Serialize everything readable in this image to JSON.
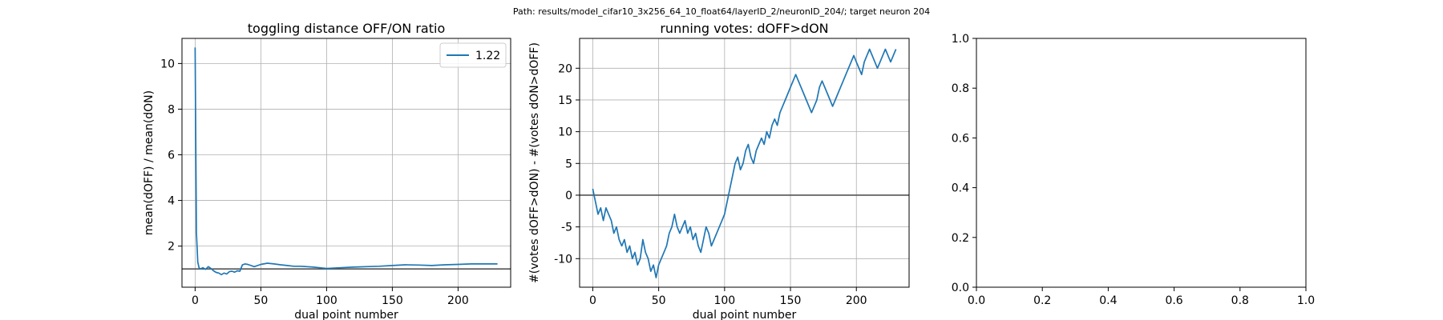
{
  "suptitle": "Path: results/model_cifar10_3x256_64_10_float64/layerID_2/neuronID_204/; target neuron 204",
  "chart_data": [
    {
      "type": "line",
      "title": "toggling distance OFF/ON ratio",
      "xlabel": "dual point number",
      "ylabel": "mean(dOFF) / mean(dON)",
      "xlim": [
        -10,
        240
      ],
      "ylim": [
        0.2,
        11.1
      ],
      "xticks": [
        0,
        50,
        100,
        150,
        200
      ],
      "yticks": [
        2,
        4,
        6,
        8,
        10
      ],
      "grid": true,
      "hline": 1.0,
      "legend": {
        "position": "top-right",
        "entries": [
          "1.22"
        ]
      },
      "color": "#1f77b4",
      "series": [
        {
          "name": "1.22",
          "x": [
            0,
            1,
            2,
            3,
            4,
            6,
            8,
            10,
            12,
            14,
            16,
            18,
            20,
            22,
            24,
            26,
            28,
            30,
            32,
            34,
            36,
            38,
            40,
            45,
            50,
            55,
            60,
            65,
            70,
            75,
            80,
            85,
            90,
            95,
            100,
            110,
            120,
            130,
            140,
            150,
            160,
            170,
            180,
            190,
            200,
            210,
            220,
            230
          ],
          "y": [
            10.7,
            2.6,
            1.3,
            1.05,
            1.0,
            1.05,
            0.98,
            1.1,
            1.02,
            0.92,
            0.85,
            0.82,
            0.75,
            0.82,
            0.78,
            0.88,
            0.9,
            0.86,
            0.92,
            0.9,
            1.18,
            1.22,
            1.2,
            1.1,
            1.2,
            1.25,
            1.22,
            1.18,
            1.15,
            1.12,
            1.12,
            1.1,
            1.08,
            1.05,
            1.02,
            1.05,
            1.08,
            1.1,
            1.12,
            1.15,
            1.18,
            1.17,
            1.15,
            1.18,
            1.2,
            1.22,
            1.22,
            1.22
          ]
        }
      ]
    },
    {
      "type": "line",
      "title": "running votes: dOFF>dON",
      "xlabel": "dual point number",
      "ylabel": "#(votes dOFF>dON) - #(votes dON>dOFF)",
      "xlim": [
        -10,
        240
      ],
      "ylim": [
        -14.5,
        24.7
      ],
      "xticks": [
        0,
        50,
        100,
        150,
        200
      ],
      "yticks": [
        -10,
        -5,
        0,
        5,
        10,
        15,
        20
      ],
      "grid": true,
      "hline": 0,
      "color": "#1f77b4",
      "series": [
        {
          "x": [
            0,
            2,
            4,
            6,
            8,
            10,
            12,
            14,
            16,
            18,
            20,
            22,
            24,
            26,
            28,
            30,
            32,
            34,
            36,
            38,
            40,
            42,
            44,
            46,
            48,
            50,
            52,
            54,
            56,
            58,
            60,
            62,
            64,
            66,
            68,
            70,
            72,
            74,
            76,
            78,
            80,
            82,
            84,
            86,
            88,
            90,
            92,
            94,
            96,
            98,
            100,
            102,
            104,
            106,
            108,
            110,
            112,
            114,
            116,
            118,
            120,
            122,
            124,
            126,
            128,
            130,
            132,
            134,
            136,
            138,
            140,
            142,
            144,
            146,
            148,
            150,
            152,
            154,
            156,
            158,
            160,
            162,
            164,
            166,
            168,
            170,
            172,
            174,
            176,
            178,
            180,
            182,
            184,
            186,
            188,
            190,
            192,
            194,
            196,
            198,
            200,
            202,
            204,
            206,
            208,
            210,
            212,
            214,
            216,
            218,
            220,
            222,
            224,
            226,
            228,
            230
          ],
          "y": [
            1,
            -1,
            -3,
            -2,
            -4,
            -2,
            -3,
            -4,
            -6,
            -5,
            -7,
            -8,
            -7,
            -9,
            -8,
            -10,
            -9,
            -11,
            -10,
            -7,
            -9,
            -10,
            -12,
            -11,
            -13,
            -11,
            -10,
            -9,
            -8,
            -6,
            -5,
            -3,
            -5,
            -6,
            -5,
            -4,
            -6,
            -5,
            -7,
            -6,
            -8,
            -9,
            -7,
            -5,
            -6,
            -8,
            -7,
            -6,
            -5,
            -4,
            -3,
            -1,
            1,
            3,
            5,
            6,
            4,
            5,
            7,
            8,
            6,
            5,
            7,
            8,
            9,
            8,
            10,
            9,
            11,
            12,
            11,
            13,
            14,
            15,
            16,
            17,
            18,
            19,
            18,
            17,
            16,
            15,
            14,
            13,
            14,
            15,
            17,
            18,
            17,
            16,
            15,
            14,
            15,
            16,
            17,
            18,
            19,
            20,
            21,
            22,
            21,
            20,
            19,
            21,
            22,
            23,
            22,
            21,
            20,
            21,
            22,
            23,
            22,
            21,
            22,
            23
          ]
        }
      ]
    },
    {
      "type": "line",
      "title": "",
      "xlabel": "",
      "ylabel": "",
      "xlim": [
        0,
        1
      ],
      "ylim": [
        0,
        1
      ],
      "xticks": [
        0.0,
        0.2,
        0.4,
        0.6,
        0.8,
        1.0
      ],
      "yticks": [
        0.0,
        0.2,
        0.4,
        0.6,
        0.8,
        1.0
      ],
      "grid": false,
      "series": []
    }
  ]
}
